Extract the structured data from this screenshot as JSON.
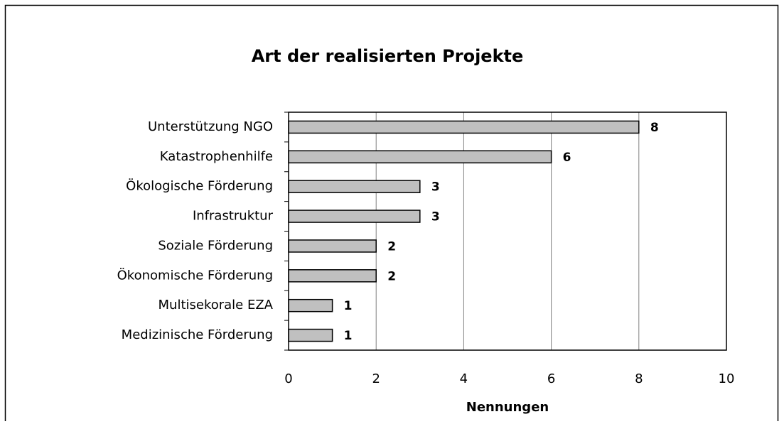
{
  "chart_data": {
    "type": "bar",
    "orientation": "horizontal",
    "title": "Art der realisierten Projekte",
    "x_label": "Nennungen",
    "categories": [
      "Unterstützung NGO",
      "Katastrophenhilfe",
      "Ökologische Förderung",
      "Infrastruktur",
      "Soziale Förderung",
      "Ökonomische Förderung",
      "Multisekorale EZA",
      "Medizinische Förderung"
    ],
    "values": [
      8,
      6,
      3,
      3,
      2,
      2,
      1,
      1
    ],
    "color": "#c0c0c0",
    "xlim": [
      0,
      10
    ],
    "xticks": [
      0,
      2,
      4,
      6,
      8,
      10
    ],
    "grid": true
  }
}
